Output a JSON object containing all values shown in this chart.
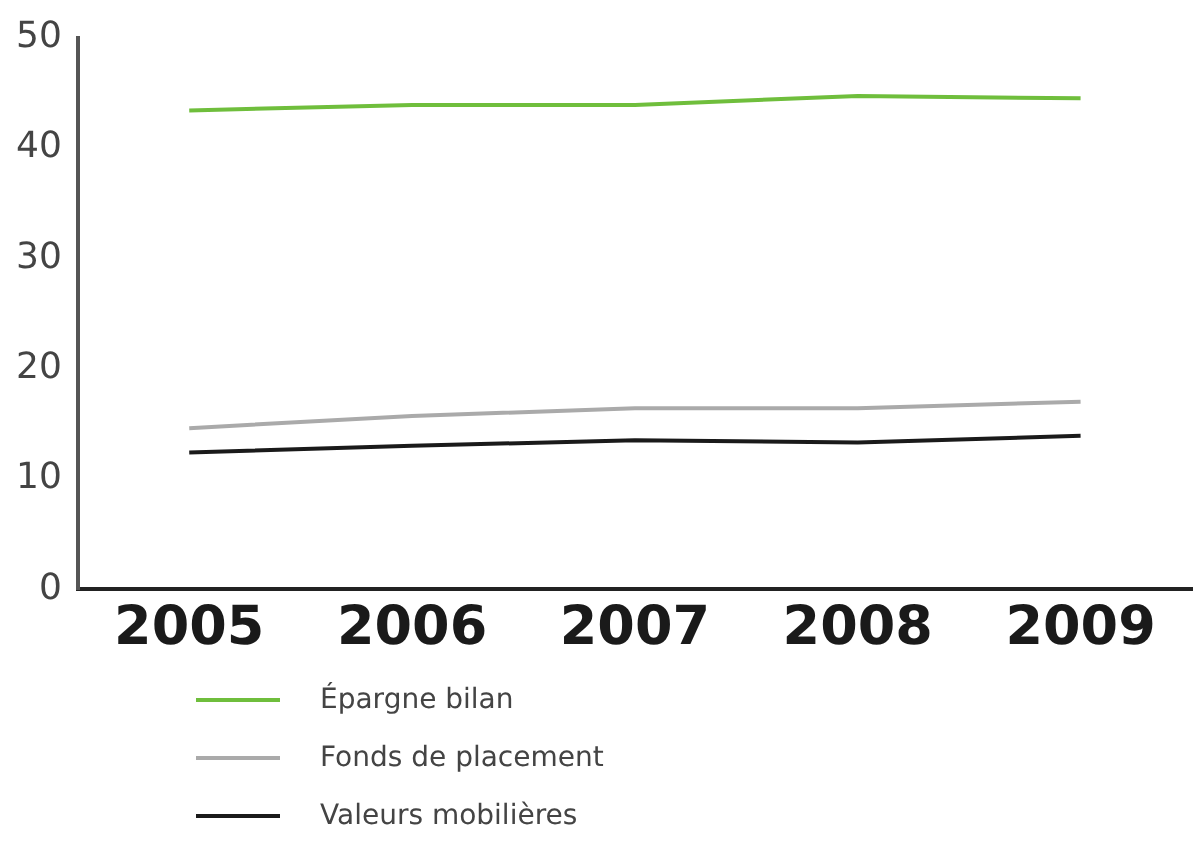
{
  "chart_data": {
    "type": "line",
    "categories": [
      "2005",
      "2006",
      "2007",
      "2008",
      "2009"
    ],
    "series": [
      {
        "name": "Épargne bilan",
        "color": "#6fbe3c",
        "values": [
          43.4,
          43.9,
          43.9,
          44.7,
          44.5
        ]
      },
      {
        "name": "Fonds de placement",
        "color": "#aaaaaa",
        "values": [
          14.6,
          15.7,
          16.4,
          16.4,
          17.0
        ]
      },
      {
        "name": "Valeurs mobilières",
        "color": "#1a1a1a",
        "values": [
          12.4,
          13.0,
          13.5,
          13.3,
          13.9
        ]
      }
    ],
    "ylim": [
      0,
      50
    ],
    "yticks": [
      0,
      10,
      20,
      30,
      40,
      50
    ],
    "grid": false,
    "legend": "bottom",
    "marker": "none",
    "line_style": "solid"
  }
}
